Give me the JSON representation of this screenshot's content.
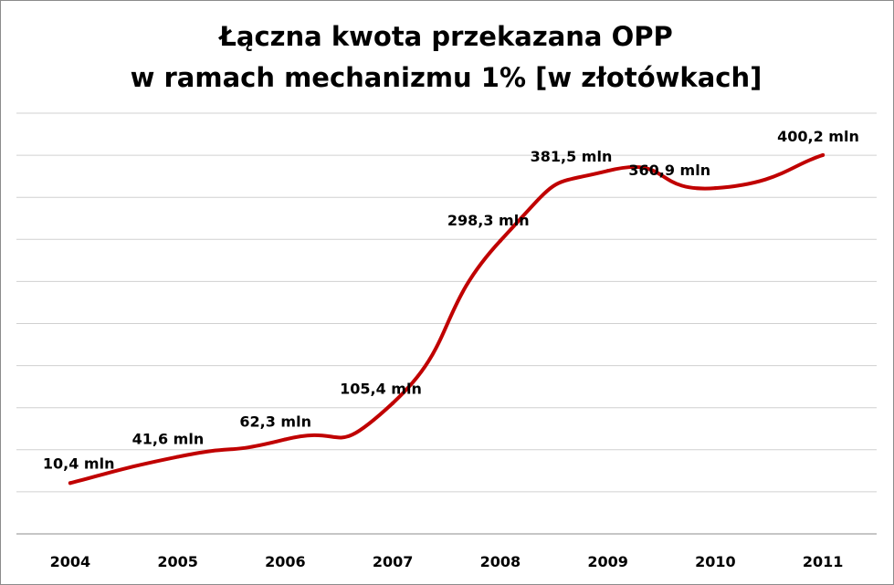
{
  "chart_data": {
    "type": "line",
    "title_line1": "Łączna kwota przekazana OPP",
    "title_line2": "w ramach mechanizmu 1% [w złotówkach]",
    "categories": [
      "2004",
      "2005",
      "2006",
      "2007",
      "2008",
      "2009",
      "2010",
      "2011"
    ],
    "values": [
      10.4,
      41.6,
      62.3,
      105.4,
      298.3,
      381.5,
      360.9,
      400.2
    ],
    "data_labels": [
      "10,4 mln",
      "41,6 mln",
      "62,3 mln",
      "105,4 mln",
      "298,3 mln",
      "381,5 mln",
      "360,9 mln",
      "400,2 mln"
    ],
    "ylim": [
      -50,
      450
    ],
    "grid": true,
    "legend": "none",
    "line_color": "#c00000"
  }
}
